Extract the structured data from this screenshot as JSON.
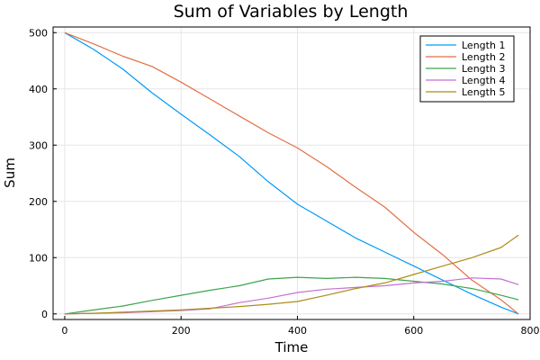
{
  "chart_data": {
    "type": "line",
    "title": "Sum of Variables by Length",
    "xlabel": "Time",
    "ylabel": "Sum",
    "xlim": [
      -20,
      800
    ],
    "ylim": [
      -10,
      510
    ],
    "xticks": [
      0,
      200,
      400,
      600,
      800
    ],
    "yticks": [
      0,
      100,
      200,
      300,
      400,
      500
    ],
    "grid": true,
    "legend_position": "top-right",
    "series": [
      {
        "name": "Length 1",
        "color": "#009af9",
        "x": [
          0,
          50,
          100,
          150,
          200,
          250,
          300,
          350,
          400,
          450,
          500,
          550,
          600,
          650,
          700,
          750,
          780
        ],
        "y": [
          500,
          470,
          435,
          393,
          355,
          318,
          280,
          235,
          195,
          165,
          135,
          110,
          85,
          60,
          35,
          12,
          0
        ]
      },
      {
        "name": "Length 2",
        "color": "#e26f46",
        "x": [
          0,
          50,
          100,
          150,
          200,
          250,
          300,
          350,
          400,
          450,
          500,
          550,
          600,
          650,
          700,
          750,
          780
        ],
        "y": [
          500,
          480,
          458,
          440,
          412,
          382,
          352,
          322,
          295,
          262,
          225,
          190,
          145,
          105,
          60,
          25,
          0
        ]
      },
      {
        "name": "Length 3",
        "color": "#3da44d",
        "x": [
          0,
          50,
          100,
          150,
          200,
          250,
          300,
          350,
          400,
          450,
          500,
          550,
          600,
          650,
          700,
          750,
          780
        ],
        "y": [
          0,
          7,
          14,
          24,
          33,
          42,
          50,
          62,
          65,
          63,
          65,
          63,
          58,
          53,
          45,
          33,
          25
        ]
      },
      {
        "name": "Length 4",
        "color": "#c271d2",
        "x": [
          0,
          50,
          100,
          150,
          200,
          250,
          300,
          350,
          400,
          450,
          500,
          550,
          600,
          650,
          700,
          750,
          780
        ],
        "y": [
          0,
          1,
          2,
          4,
          6,
          9,
          20,
          28,
          38,
          44,
          47,
          50,
          55,
          58,
          64,
          62,
          52
        ]
      },
      {
        "name": "Length 5",
        "color": "#ac8d18",
        "x": [
          0,
          50,
          100,
          150,
          200,
          250,
          300,
          350,
          400,
          450,
          500,
          550,
          600,
          650,
          700,
          750,
          780
        ],
        "y": [
          0,
          1,
          3,
          5,
          7,
          10,
          13,
          17,
          22,
          33,
          45,
          55,
          70,
          85,
          100,
          118,
          140
        ]
      }
    ]
  }
}
